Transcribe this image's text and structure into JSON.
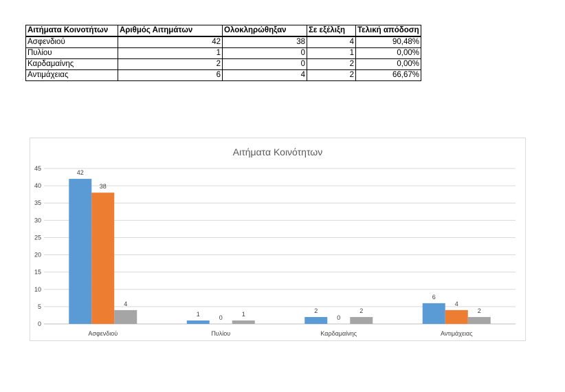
{
  "table": {
    "headers": [
      "Αιτήματα Κοινοτήτων",
      "Αριθμός Αιτημάτων",
      "Ολοκληρώθηξαν",
      "Σε εξέλιξη",
      "Τελική απόδοση"
    ],
    "rows": [
      [
        "Ασφενδιού",
        "42",
        "38",
        "4",
        "90,48%"
      ],
      [
        "Πυλίου",
        "1",
        "0",
        "1",
        "0,00%"
      ],
      [
        "Καρδαμαίνης",
        "2",
        "0",
        "2",
        "0,00%"
      ],
      [
        "Αντιμάχειας",
        "6",
        "4",
        "2",
        "66,67%"
      ]
    ]
  },
  "chart_data": {
    "type": "bar",
    "title": "Αιτήματα Κοινότητων",
    "categories": [
      "Ασφενδιού",
      "Πυλίου",
      "Καρδαμαίνης",
      "Αντιμάχειας"
    ],
    "series": [
      {
        "values": [
          42,
          1,
          2,
          6
        ],
        "color": "#5b9bd5"
      },
      {
        "values": [
          38,
          0,
          0,
          4
        ],
        "color": "#ed7d31"
      },
      {
        "values": [
          4,
          1,
          2,
          2
        ],
        "color": "#a5a5a5"
      }
    ],
    "yticks": [
      0,
      5,
      10,
      15,
      20,
      25,
      30,
      35,
      40,
      45
    ],
    "ylim": [
      0,
      45
    ],
    "grid": true,
    "legend": "none",
    "xlabel": "",
    "ylabel": ""
  }
}
